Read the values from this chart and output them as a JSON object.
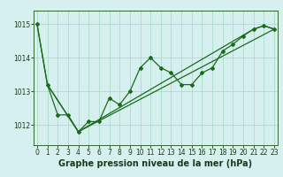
{
  "title": "Graphe pression niveau de la mer (hPa)",
  "background_color": "#d6f0f0",
  "plot_bg_color": "#d6f0f0",
  "grid_color": "#aaddcc",
  "line_color": "#1a6b1a",
  "x_ticks": [
    0,
    1,
    2,
    3,
    4,
    5,
    6,
    7,
    8,
    9,
    10,
    11,
    12,
    13,
    14,
    15,
    16,
    17,
    18,
    19,
    20,
    21,
    22,
    23
  ],
  "y_ticks": [
    1012,
    1013,
    1014,
    1015
  ],
  "ylim": [
    1011.4,
    1015.4
  ],
  "xlim": [
    -0.3,
    23.3
  ],
  "series1_x": [
    0,
    1,
    2,
    3,
    4,
    5,
    6,
    7,
    8,
    9,
    10,
    11,
    12,
    13,
    14,
    15,
    16,
    17,
    18,
    19,
    20,
    21,
    22,
    23
  ],
  "series1_y": [
    1015.0,
    1013.2,
    1012.3,
    1012.3,
    1011.8,
    1012.1,
    1012.1,
    1012.8,
    1012.6,
    1013.0,
    1013.7,
    1014.0,
    1013.7,
    1013.55,
    1013.2,
    1013.2,
    1013.55,
    1013.7,
    1014.2,
    1014.4,
    1014.65,
    1014.85,
    1014.95,
    1014.85
  ],
  "series2_x": [
    0,
    1,
    4,
    21,
    22,
    23
  ],
  "series2_y": [
    1015.0,
    1013.2,
    1011.8,
    1014.85,
    1014.95,
    1014.85
  ],
  "series3_x": [
    1,
    4,
    23
  ],
  "series3_y": [
    1013.2,
    1011.8,
    1014.85
  ],
  "tick_fontsize": 5.5,
  "label_fontsize": 7.0
}
